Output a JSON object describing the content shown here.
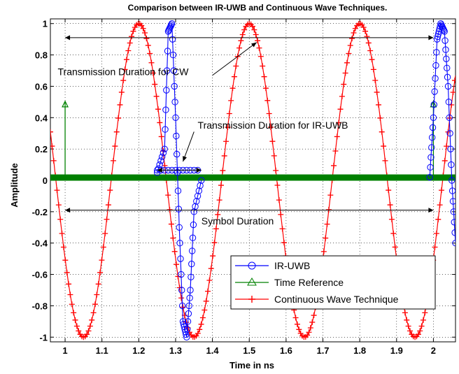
{
  "chart_data": {
    "type": "line",
    "title": "Comparison between IR-UWB and Continuous Wave Techniques.",
    "xlabel": "Time in ns",
    "ylabel": "Amplitude",
    "xlim": [
      0.96,
      2.06
    ],
    "ylim": [
      -1.03,
      1.03
    ],
    "x_ticks": [
      1,
      1.1,
      1.2,
      1.3,
      1.4,
      1.5,
      1.6,
      1.7,
      1.8,
      1.9,
      2
    ],
    "x_tick_labels": [
      "1",
      "1.1",
      "1.2",
      "1.3",
      "1.4",
      "1.5",
      "1.6",
      "1.7",
      "1.8",
      "1.9",
      "2"
    ],
    "y_ticks": [
      1,
      0.8,
      0.6,
      0.4,
      0.2,
      0,
      -0.2,
      -0.4,
      -0.6,
      -0.8,
      -1
    ],
    "y_tick_labels": [
      "1",
      "0.8",
      "0.6",
      "0.4",
      "0.2",
      "0",
      "-0.2",
      "-0.4",
      "-0.6",
      "-0.8",
      "-1"
    ],
    "grid": true,
    "legend_position": "bottom-right",
    "series": [
      {
        "name": "IR-UWB",
        "color": "#0000ff",
        "marker": "circle",
        "description_values": {
          "pulse_1": {
            "x_center": 1.31,
            "x": [
              1.25,
              1.27,
              1.28,
              1.29,
              1.3,
              1.31,
              1.32,
              1.33,
              1.34,
              1.35,
              1.37
            ],
            "y": [
              0.05,
              0.2,
              0.95,
              1.0,
              0.4,
              -0.3,
              -0.9,
              -1.0,
              -0.7,
              -0.2,
              0.0
            ]
          },
          "pulse_2": {
            "x": [
              1.99,
              2.0,
              2.01,
              2.02,
              2.03,
              2.04,
              2.05,
              2.06
            ],
            "y": [
              0.02,
              0.4,
              0.9,
              1.0,
              0.95,
              0.6,
              0.0,
              -0.4
            ]
          }
        },
        "baseline": 0.02
      },
      {
        "name": "Time Reference",
        "color": "#008000",
        "marker": "triangle",
        "stems": [
          {
            "x": 1.0,
            "y": 0.5
          },
          {
            "x": 2.0,
            "y": 0.5
          }
        ],
        "baseline": 0.02
      },
      {
        "name": "Continuous Wave Technique",
        "color": "#ff0000",
        "marker": "plus",
        "frequency_ghz": 3.3333,
        "phase_peak_x": 1.2,
        "amplitude": 1.0
      }
    ],
    "annotations": [
      {
        "text": "Transmission Duration for CW",
        "x": 0.98,
        "y": 0.67
      },
      {
        "text": "Transmission Duration for IR-UWB",
        "x": 1.36,
        "y": 0.33
      },
      {
        "text": "Symbol Duration",
        "x": 1.37,
        "y": -0.28
      }
    ],
    "arrows": [
      {
        "kind": "double",
        "x1": 1.0,
        "x2": 2.0,
        "y": 0.91
      },
      {
        "kind": "double",
        "x1": 1.0,
        "x2": 2.0,
        "y": -0.19
      },
      {
        "kind": "double",
        "x1": 1.25,
        "x2": 1.37,
        "y": 0.065
      },
      {
        "kind": "pointer",
        "from": [
          1.4,
          0.67
        ],
        "to": [
          1.52,
          0.88
        ]
      },
      {
        "kind": "pointer",
        "from": [
          1.35,
          0.31
        ],
        "to": [
          1.32,
          0.12
        ]
      }
    ]
  }
}
